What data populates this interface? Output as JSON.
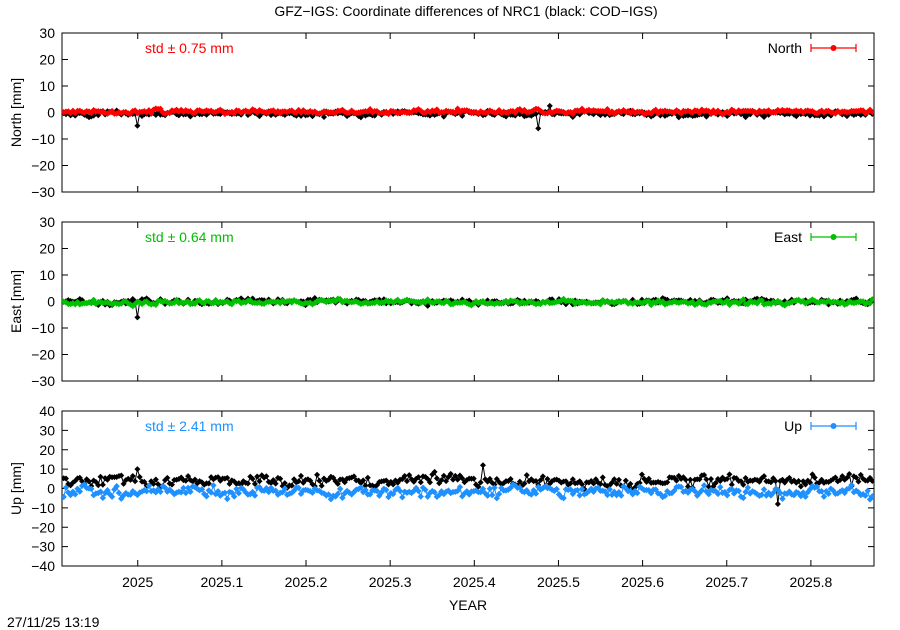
{
  "title": "GFZ−IGS: Coordinate differences of NRC1 (black: COD−IGS)",
  "timestamp": "27/11/25 13:19",
  "chart_data": {
    "type": "line",
    "xlabel": "YEAR",
    "xlim": [
      2024.91,
      2025.875
    ],
    "xticks": [
      2025,
      2025.1,
      2025.2,
      2025.3,
      2025.4,
      2025.5,
      2025.6,
      2025.7,
      2025.8
    ],
    "xtick_labels": [
      "2025",
      "2025.1",
      "2025.2",
      "2025.3",
      "2025.4",
      "2025.5",
      "2025.6",
      "2025.7",
      "2025.8"
    ],
    "grid": false,
    "legend_position": "top-right",
    "panels": [
      {
        "component": "north",
        "ylabel": "North [mm]",
        "ylim": [
          -30,
          30
        ],
        "yticks": [
          -30,
          -20,
          -10,
          0,
          10,
          20,
          30
        ],
        "ytick_labels": [
          "−30",
          "−20",
          "−10",
          "0",
          "10",
          "20",
          "30"
        ],
        "legend": "North",
        "std_label": "std ± 0.75 mm",
        "color": "#ff0000",
        "gfz_mean": 0.3,
        "gfz_amplitude": 0.8,
        "cod_mean": -0.4,
        "cod_amplitude": 1.0,
        "outliers": [
          {
            "x": 2025.0,
            "y": -5
          },
          {
            "x": 2025.475,
            "y": -6
          },
          {
            "x": 2025.49,
            "y": 2.5
          }
        ]
      },
      {
        "component": "east",
        "ylabel": "East [mm]",
        "ylim": [
          -30,
          30
        ],
        "yticks": [
          -30,
          -20,
          -10,
          0,
          10,
          20,
          30
        ],
        "ytick_labels": [
          "−30",
          "−20",
          "−10",
          "0",
          "10",
          "20",
          "30"
        ],
        "legend": "East",
        "std_label": "std ± 0.64 mm",
        "color": "#00c000",
        "gfz_mean": -0.3,
        "gfz_amplitude": 0.8,
        "cod_mean": 0.0,
        "cod_amplitude": 1.0,
        "outliers": [
          {
            "x": 2025.0,
            "y": -6
          }
        ]
      },
      {
        "component": "up",
        "ylabel": "Up [mm]",
        "ylim": [
          -40,
          40
        ],
        "yticks": [
          -40,
          -30,
          -20,
          -10,
          0,
          10,
          20,
          30,
          40
        ],
        "ytick_labels": [
          "−40",
          "−30",
          "−20",
          "−10",
          "0",
          "10",
          "20",
          "30",
          "40"
        ],
        "legend": "Up",
        "std_label": "std ± 2.41 mm",
        "color": "#1e90ff",
        "gfz_mean": -1.5,
        "gfz_amplitude": 2.8,
        "cod_mean": 4.0,
        "cod_amplitude": 2.8,
        "outliers": [
          {
            "x": 2025.0,
            "y": 10
          },
          {
            "x": 2025.41,
            "y": 12
          },
          {
            "x": 2025.76,
            "y": -8
          }
        ]
      }
    ]
  }
}
